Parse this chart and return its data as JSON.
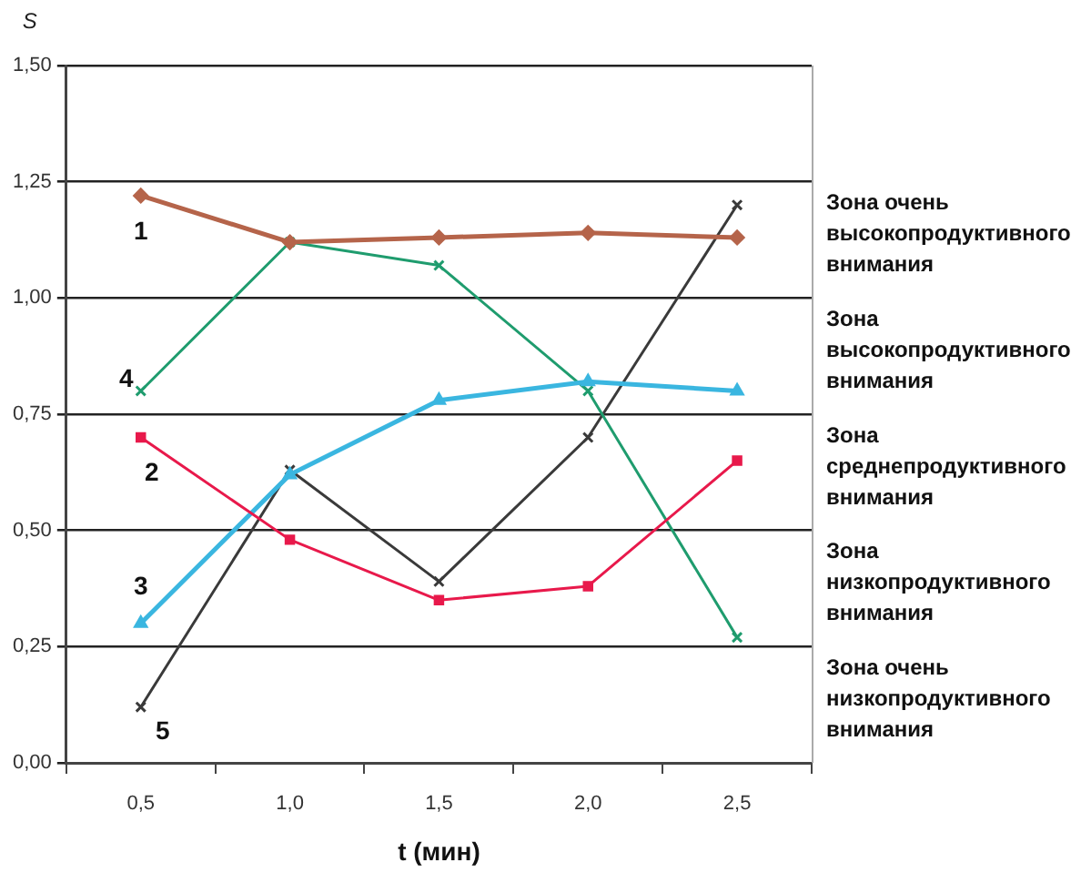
{
  "chart_data": {
    "type": "line",
    "xlabel": "t (мин)",
    "ylabel": "S",
    "categories": [
      "0,5",
      "1,0",
      "1,5",
      "2,0",
      "2,5"
    ],
    "ylim": [
      0,
      1.5
    ],
    "yticks": [
      {
        "value": 0,
        "label": "0,00"
      },
      {
        "value": 0.25,
        "label": "0,25"
      },
      {
        "value": 0.5,
        "label": "0,50"
      },
      {
        "value": 0.75,
        "label": "0,75"
      },
      {
        "value": 1,
        "label": "1,00"
      },
      {
        "value": 1.25,
        "label": "1,25"
      },
      {
        "value": 1.5,
        "label": "1,50"
      }
    ],
    "grid": "y",
    "legend": false,
    "line_style": "solid",
    "series": [
      {
        "name": "1",
        "color": "#b5644a",
        "marker": "diamond",
        "values": [
          1.22,
          1.12,
          1.13,
          1.14,
          1.13
        ]
      },
      {
        "name": "2",
        "color": "#e8194b",
        "marker": "square",
        "values": [
          0.7,
          0.48,
          0.35,
          0.38,
          0.65
        ]
      },
      {
        "name": "3",
        "color": "#3ab6e0",
        "marker": "triangle",
        "values": [
          0.3,
          0.62,
          0.78,
          0.82,
          0.8
        ]
      },
      {
        "name": "4",
        "color": "#1f9c6e",
        "marker": "cross",
        "values": [
          0.8,
          1.12,
          1.07,
          0.8,
          0.27
        ]
      },
      {
        "name": "5",
        "color": "#3a3a3a",
        "marker": "cross",
        "values": [
          0.12,
          0.63,
          0.39,
          0.7,
          1.2
        ]
      }
    ],
    "annotations": [
      "Зона очень высокопродуктивного внимания",
      "Зона высокопродуктивного внимания",
      "Зона среднепродуктивного внимания",
      "Зона низкопродуктивного внимания",
      "Зона очень низкопродуктивного внимания"
    ]
  }
}
